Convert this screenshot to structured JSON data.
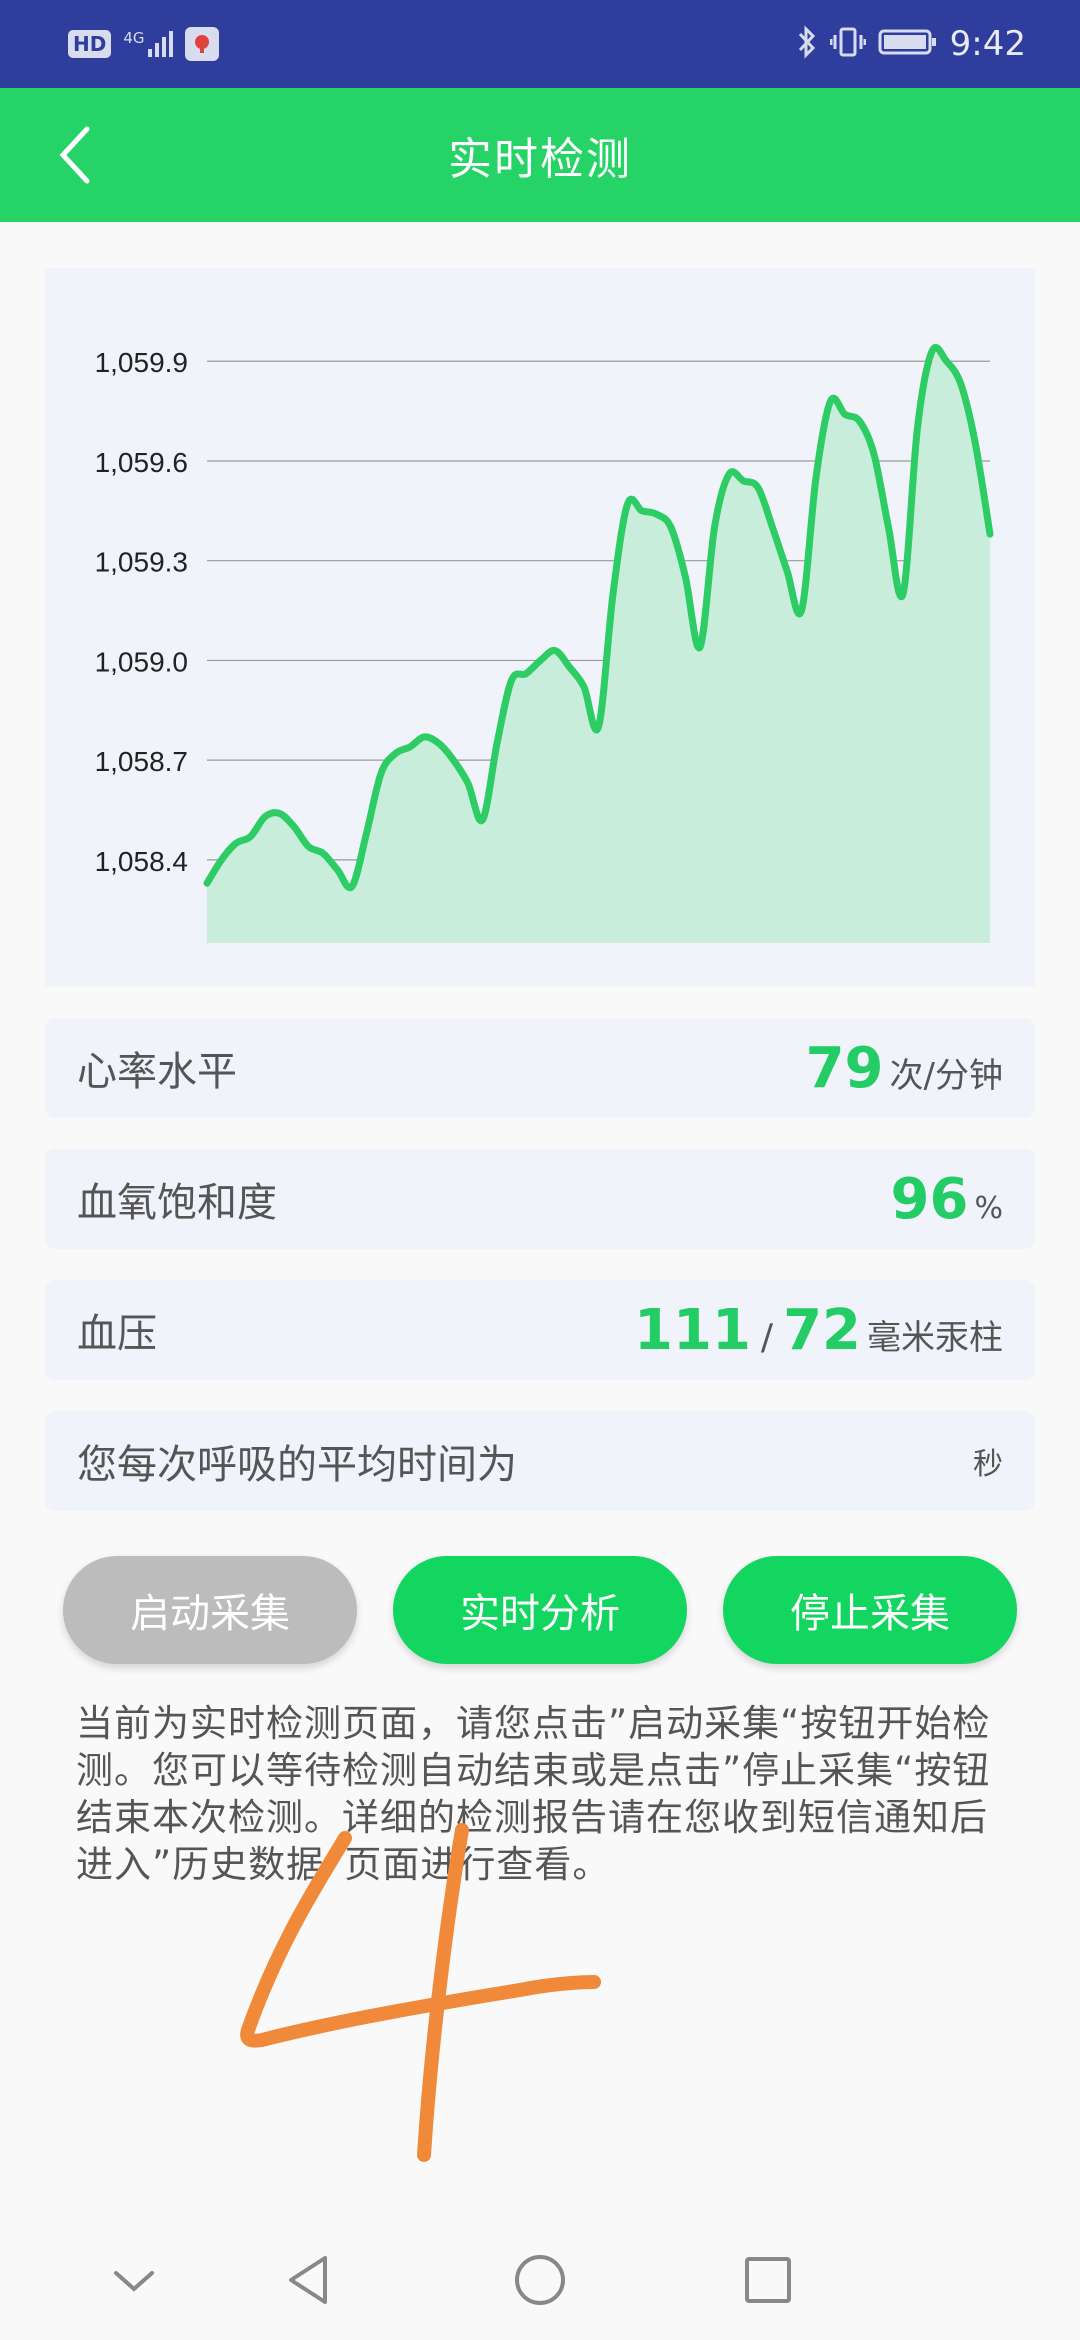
{
  "status_bar": {
    "hd_label": "HD",
    "network_label": "4G",
    "time": "9:42",
    "icons": [
      "hd-icon",
      "signal-icon",
      "sim-app-icon",
      "bluetooth-icon",
      "vibrate-icon",
      "battery-icon"
    ]
  },
  "header": {
    "title": "实时检测",
    "back_icon": "back-chevron-icon",
    "background_color": "#25d366"
  },
  "chart_data": {
    "type": "area",
    "title": "",
    "xlabel": "",
    "ylabel": "",
    "y_ticks": [
      "1,058.4",
      "1,058.7",
      "1,059.0",
      "1,059.3",
      "1,059.6",
      "1,059.9"
    ],
    "y_tick_values": [
      1058.4,
      1058.7,
      1059.0,
      1059.3,
      1059.6,
      1059.9
    ],
    "ylim": [
      1058.15,
      1060.0
    ],
    "grid": true,
    "line_color": "#2ecc64",
    "fill_color": "#c8eedb",
    "series": [
      {
        "values": [
          1058.33,
          1058.4,
          1058.45,
          1058.47,
          1058.53,
          1058.54,
          1058.5,
          1058.44,
          1058.42,
          1058.37,
          1058.32,
          1058.48,
          1058.66,
          1058.72,
          1058.74,
          1058.77,
          1058.75,
          1058.7,
          1058.63,
          1058.52,
          1058.75,
          1058.94,
          1058.96,
          1059.0,
          1059.03,
          1058.98,
          1058.92,
          1058.8,
          1059.2,
          1059.47,
          1059.45,
          1059.44,
          1059.4,
          1059.25,
          1059.04,
          1059.4,
          1059.56,
          1059.54,
          1059.52,
          1059.4,
          1059.27,
          1059.15,
          1059.55,
          1059.78,
          1059.74,
          1059.72,
          1059.62,
          1059.4,
          1059.2,
          1059.7,
          1059.93,
          1059.9,
          1059.83,
          1059.65,
          1059.38
        ]
      }
    ]
  },
  "metrics": [
    {
      "label": "心率水平",
      "value": "79",
      "unit": "次/分钟"
    },
    {
      "label": "血氧饱和度",
      "value": "96",
      "unit": "%"
    },
    {
      "label": "血压",
      "systolic": "111",
      "separator": "/",
      "diastolic": "72",
      "unit": "毫米汞柱"
    },
    {
      "label": "您每次呼吸的平均时间为",
      "value": "",
      "unit": "秒"
    }
  ],
  "buttons": {
    "start": "启动采集",
    "analyze": "实时分析",
    "stop": "停止采集"
  },
  "instructions": "当前为实时检测页面，请您点击”启动采集“按钮开始检测。您可以等待检测自动结束或是点击”停止采集“按钮结束本次检测。详细的检测报告请在您收到短信通知后进入”历史数据“页面进行查看。",
  "annotation": {
    "handwritten_number": "4",
    "color": "#f08a3a"
  },
  "nav_bar": {
    "icons": [
      "collapse-chevron-icon",
      "back-triangle-icon",
      "home-circle-icon",
      "recents-square-icon"
    ]
  }
}
